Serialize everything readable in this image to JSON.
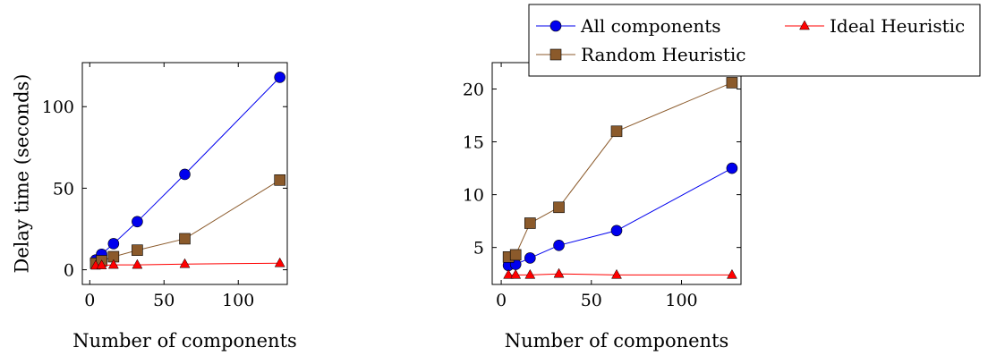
{
  "chart_data": [
    {
      "type": "line",
      "xlabel": "Number of components",
      "ylabel": "Delay time (seconds)",
      "xlim": [
        -5,
        133
      ],
      "ylim": [
        -9,
        127
      ],
      "xticks": [
        0,
        50,
        100
      ],
      "yticks": [
        0,
        50,
        100
      ],
      "grid": false,
      "series": [
        {
          "name": "All components",
          "color": "#0000ee",
          "marker": "circle",
          "x": [
            4,
            8,
            16,
            32,
            64,
            128
          ],
          "y": [
            6,
            9.5,
            16,
            29.5,
            58.5,
            118
          ]
        },
        {
          "name": "Random Heuristic",
          "color": "#8b5a2b",
          "marker": "square",
          "x": [
            4,
            8,
            16,
            32,
            64,
            128
          ],
          "y": [
            4,
            5.5,
            8,
            12,
            19,
            55
          ]
        },
        {
          "name": "Ideal Heuristic",
          "color": "#ff0000",
          "marker": "triangle",
          "x": [
            4,
            8,
            16,
            32,
            64,
            128
          ],
          "y": [
            2.5,
            2.7,
            3,
            3,
            3.5,
            4
          ]
        }
      ]
    },
    {
      "type": "line",
      "xlabel": "Number of components",
      "ylabel": "",
      "xlim": [
        -5,
        133
      ],
      "ylim": [
        1.5,
        22.5
      ],
      "xticks": [
        0,
        50,
        100
      ],
      "yticks": [
        5,
        10,
        15,
        20
      ],
      "grid": false,
      "legend_position": "top-right, outside above plot",
      "series": [
        {
          "name": "All components",
          "color": "#0000ee",
          "marker": "circle",
          "x": [
            4,
            8,
            16,
            32,
            64,
            128
          ],
          "y": [
            3.3,
            3.4,
            4,
            5.2,
            6.6,
            12.5
          ]
        },
        {
          "name": "Random Heuristic",
          "color": "#8b5a2b",
          "marker": "square",
          "x": [
            4,
            8,
            16,
            32,
            64,
            128
          ],
          "y": [
            4.1,
            4.3,
            7.3,
            8.8,
            16,
            20.6
          ]
        },
        {
          "name": "Ideal Heuristic",
          "color": "#ff0000",
          "marker": "triangle",
          "x": [
            4,
            8,
            16,
            32,
            64,
            128
          ],
          "y": [
            2.4,
            2.4,
            2.4,
            2.5,
            2.4,
            2.4
          ]
        }
      ]
    }
  ],
  "legend": {
    "entries": [
      {
        "label": "All components",
        "color": "#0000ee",
        "marker": "circle"
      },
      {
        "label": "Ideal Heuristic",
        "color": "#ff0000",
        "marker": "triangle"
      },
      {
        "label": "Random Heuristic",
        "color": "#8b5a2b",
        "marker": "square"
      }
    ]
  }
}
